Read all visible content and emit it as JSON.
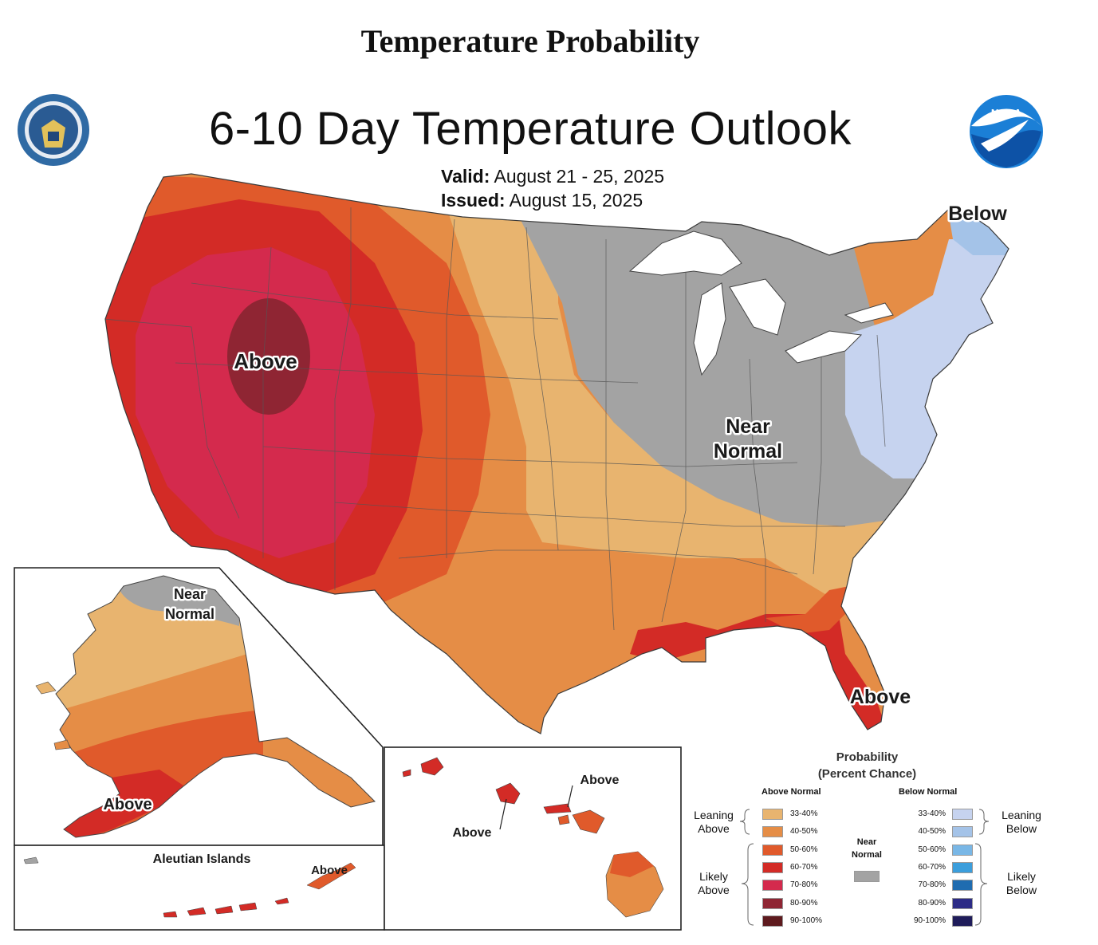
{
  "header": {
    "page_title": "Temperature Probability",
    "map_title": "6-10 Day Temperature Outlook",
    "valid_label": "Valid:",
    "valid_value": "August 21 - 25, 2025",
    "issued_label": "Issued:",
    "issued_value": "August 15, 2025"
  },
  "logos": {
    "left": "department-of-commerce-seal",
    "right": "noaa-logo",
    "right_text": "NOAA"
  },
  "map_labels": {
    "west_above": "Above",
    "near_normal_line1": "Near",
    "near_normal_line2": "Normal",
    "northeast_below": "Below",
    "florida_above": "Above"
  },
  "alaska": {
    "near_normal_line1": "Near",
    "near_normal_line2": "Normal",
    "above": "Above",
    "aleutian_title": "Aleutian Islands",
    "aleutian_above": "Above"
  },
  "hawaii": {
    "above_left": "Above",
    "above_right": "Above"
  },
  "legend": {
    "title_line1": "Probability",
    "title_line2": "(Percent Chance)",
    "above_header": "Above Normal",
    "below_header": "Below Normal",
    "near_line1": "Near",
    "near_line2": "Normal",
    "leaning_above_1": "Leaning",
    "leaning_above_2": "Above",
    "likely_above_1": "Likely",
    "likely_above_2": "Above",
    "leaning_below_1": "Leaning",
    "leaning_below_2": "Below",
    "likely_below_1": "Likely",
    "likely_below_2": "Below",
    "above_bins": [
      {
        "label": "33-40%",
        "color": "#e8b46f"
      },
      {
        "label": "40-50%",
        "color": "#e58d46"
      },
      {
        "label": "50-60%",
        "color": "#e05a2b"
      },
      {
        "label": "60-70%",
        "color": "#d32b26"
      },
      {
        "label": "70-80%",
        "color": "#d42a4d"
      },
      {
        "label": "80-90%",
        "color": "#8f2533"
      },
      {
        "label": "90-100%",
        "color": "#5e1a1e"
      }
    ],
    "below_bins": [
      {
        "label": "33-40%",
        "color": "#c6d3ef"
      },
      {
        "label": "40-50%",
        "color": "#a4c3e8"
      },
      {
        "label": "50-60%",
        "color": "#79b7e6"
      },
      {
        "label": "60-70%",
        "color": "#3b9edc"
      },
      {
        "label": "70-80%",
        "color": "#1f6cb0"
      },
      {
        "label": "80-90%",
        "color": "#2c2b86"
      },
      {
        "label": "90-100%",
        "color": "#1f1c5a"
      }
    ],
    "near_color": "#a3a3a3"
  }
}
